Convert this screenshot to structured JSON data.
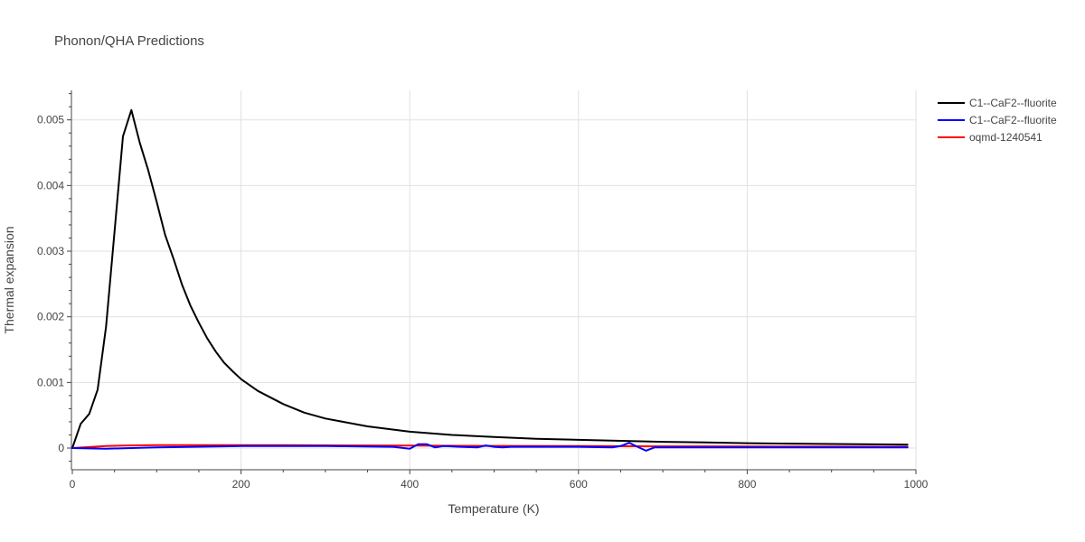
{
  "chart_data": {
    "type": "line",
    "title": "Phonon/QHA Predictions",
    "xlabel": "Temperature (K)",
    "ylabel": "Thermal expansion",
    "xlim": [
      0,
      1000
    ],
    "ylim": [
      -0.00033,
      0.00545
    ],
    "x_ticks": [
      0,
      200,
      400,
      600,
      800,
      1000
    ],
    "x_tick_labels": [
      "0",
      "200",
      "400",
      "600",
      "800",
      "1000"
    ],
    "y_ticks": [
      0,
      0.001,
      0.002,
      0.003,
      0.004,
      0.005
    ],
    "y_tick_labels": [
      "0",
      "0.001",
      "0.002",
      "0.003",
      "0.004",
      "0.005"
    ],
    "grid": true,
    "legend_position": "top-right",
    "series": [
      {
        "name": "C1--CaF2--fluorite",
        "color": "#000000",
        "x": [
          0,
          10,
          20,
          30,
          40,
          50,
          60,
          70,
          80,
          90,
          100,
          110,
          120,
          130,
          140,
          150,
          160,
          170,
          180,
          190,
          200,
          220,
          250,
          275,
          300,
          350,
          400,
          450,
          500,
          550,
          600,
          650,
          700,
          750,
          800,
          850,
          900,
          950,
          990
        ],
        "y": [
          0.0,
          0.00037,
          0.00052,
          0.00089,
          0.00185,
          0.0033,
          0.00475,
          0.00515,
          0.00465,
          0.00423,
          0.00375,
          0.00325,
          0.00288,
          0.00249,
          0.00217,
          0.00191,
          0.00167,
          0.00147,
          0.0013,
          0.00117,
          0.00105,
          0.00087,
          0.00067,
          0.00054,
          0.00045,
          0.00033,
          0.00025,
          0.0002,
          0.00017,
          0.00014,
          0.000125,
          0.00011,
          9.5e-05,
          8.5e-05,
          7.5e-05,
          6.8e-05,
          6.2e-05,
          5.7e-05,
          5.2e-05
        ]
      },
      {
        "name": "C1--CaF2--fluorite",
        "color": "#0000ff",
        "x": [
          0,
          40,
          100,
          200,
          300,
          380,
          400,
          410,
          420,
          430,
          440,
          460,
          480,
          490,
          500,
          510,
          520,
          540,
          560,
          600,
          640,
          650,
          660,
          670,
          680,
          690,
          700,
          750,
          800,
          900,
          990
        ],
        "y": [
          0.0,
          -1e-05,
          1e-05,
          3e-05,
          3e-05,
          2e-05,
          -1e-05,
          6e-05,
          6e-05,
          1e-05,
          3e-05,
          2e-05,
          1e-05,
          4e-05,
          2e-05,
          1e-05,
          2e-05,
          2e-05,
          2e-05,
          2e-05,
          1e-05,
          3e-05,
          8e-05,
          2e-05,
          -4e-05,
          1e-05,
          1e-05,
          1e-05,
          1e-05,
          1e-05,
          1e-05
        ]
      },
      {
        "name": "oqmd-1240541",
        "color": "#ff0000",
        "x": [
          0,
          20,
          40,
          60,
          80,
          100,
          150,
          200,
          250,
          300,
          400,
          500,
          600,
          700,
          800,
          900,
          990
        ],
        "y": [
          0.0,
          1.5e-05,
          3e-05,
          3.8e-05,
          4.2e-05,
          4.4e-05,
          4.5e-05,
          4.5e-05,
          4.4e-05,
          4.2e-05,
          3.8e-05,
          3.4e-05,
          3e-05,
          2.7e-05,
          2.4e-05,
          2.2e-05,
          2e-05
        ]
      }
    ]
  }
}
